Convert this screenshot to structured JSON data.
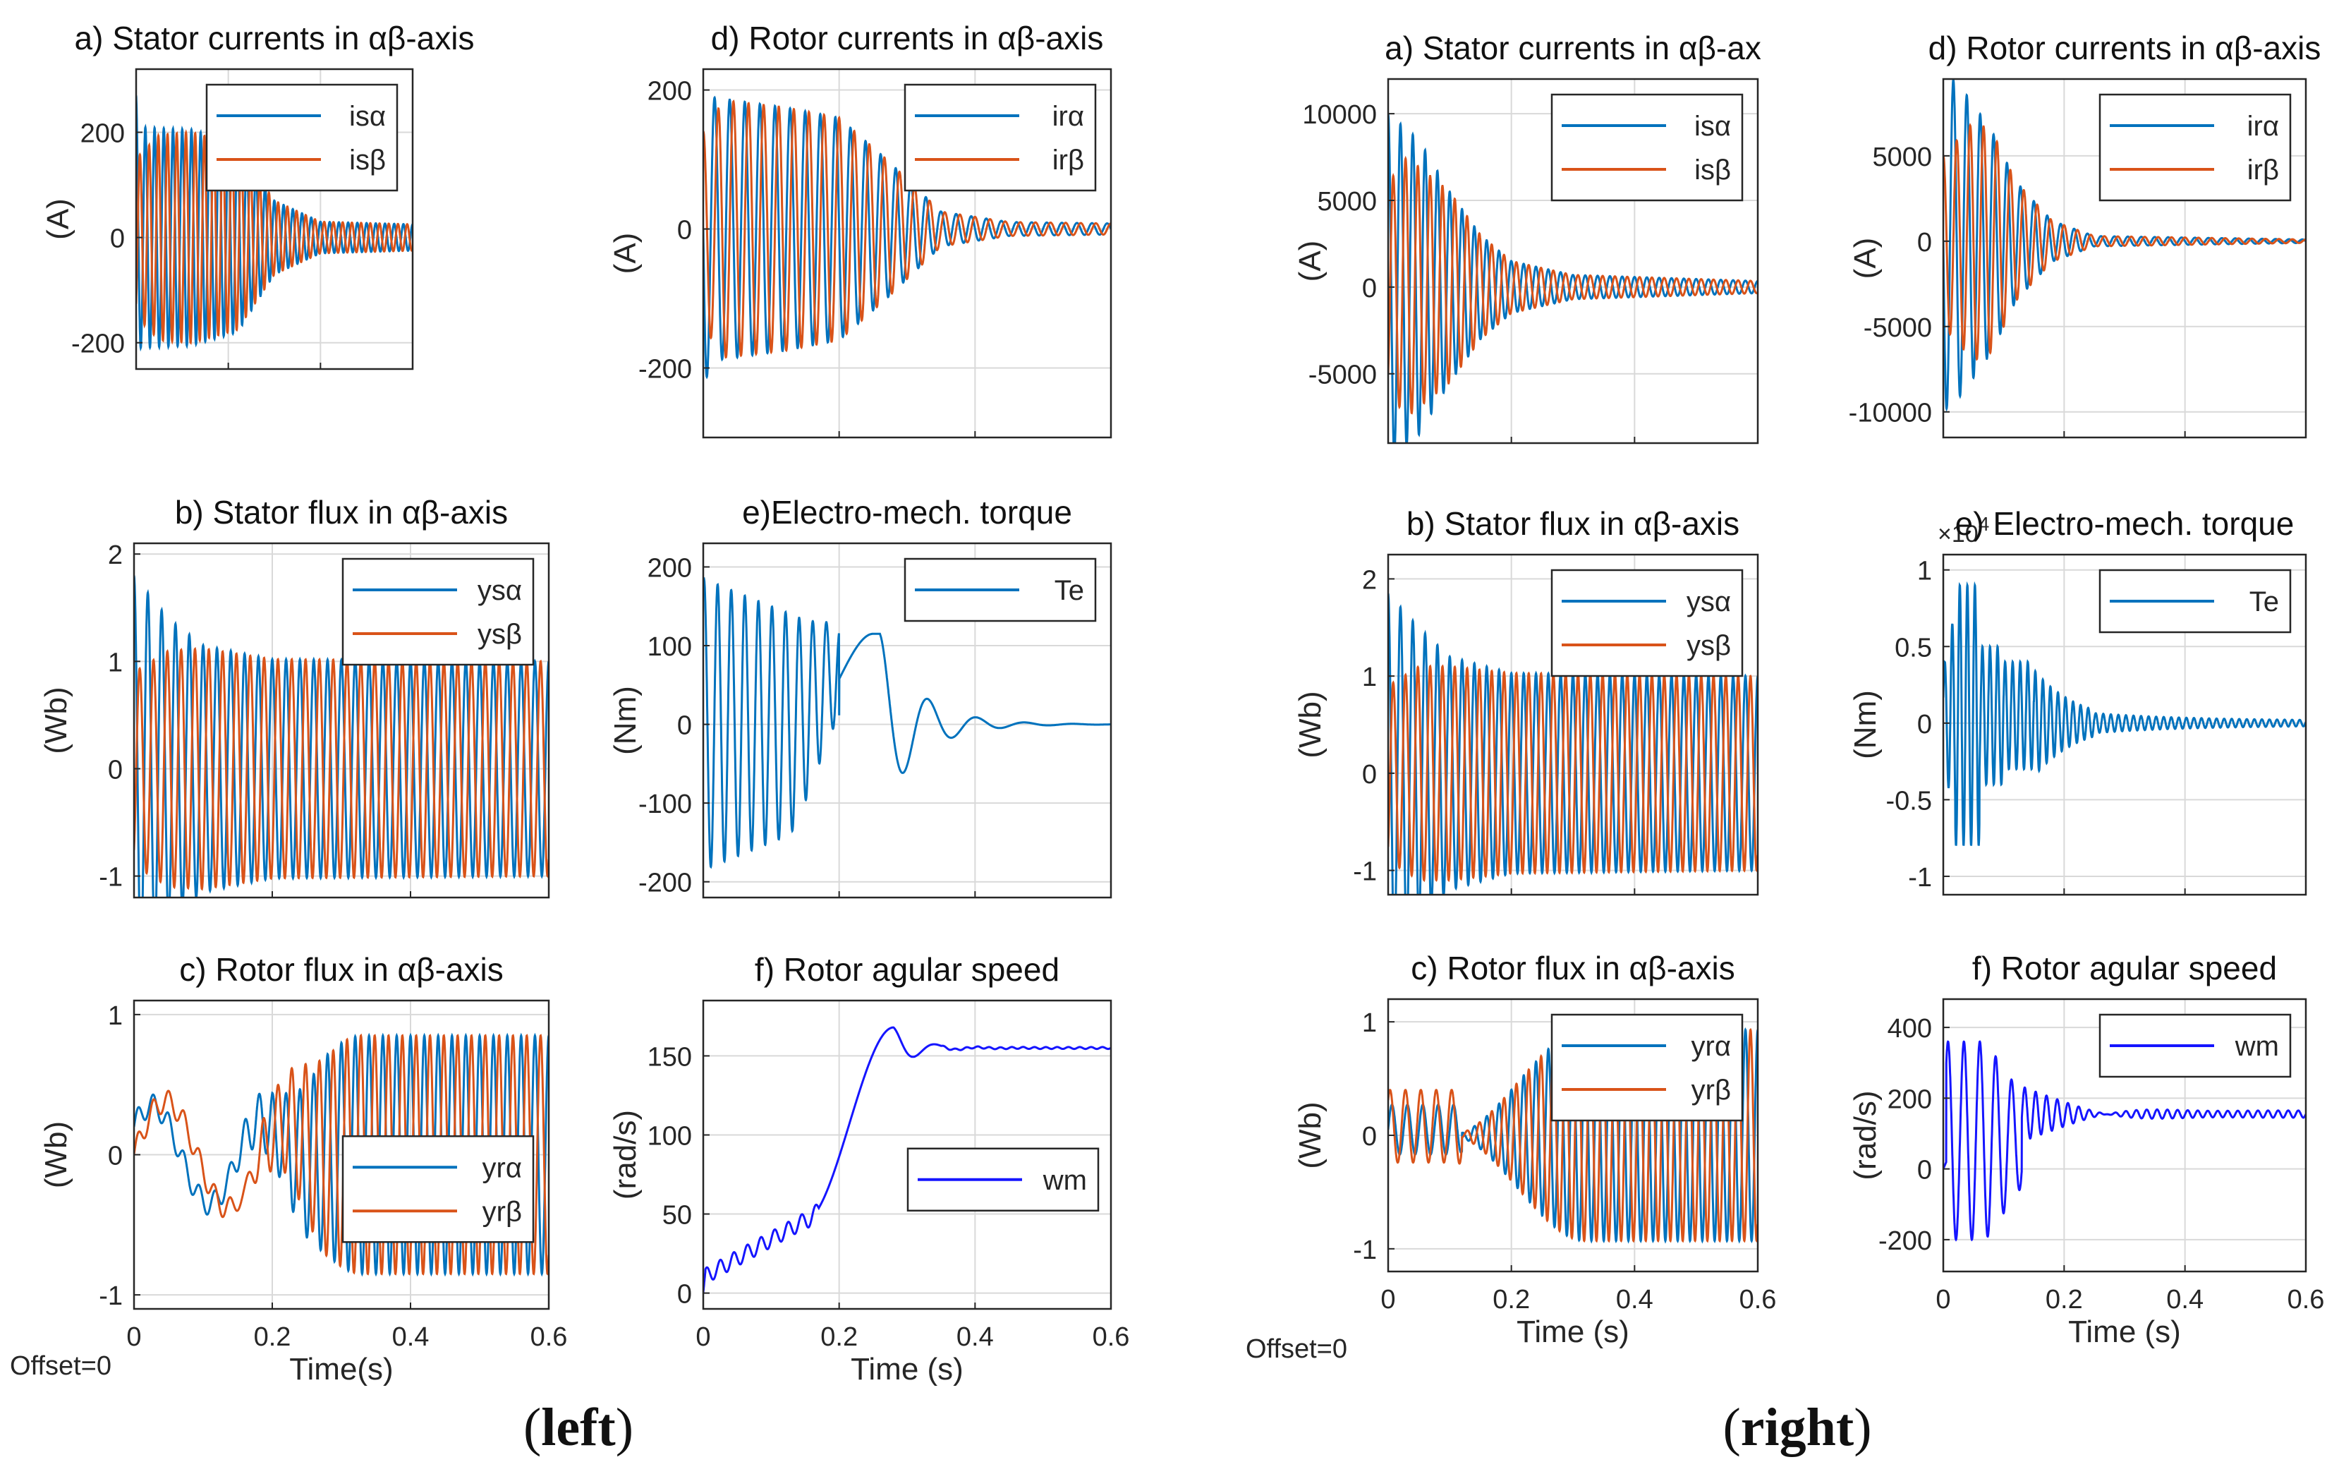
{
  "figure": {
    "captions": [
      {
        "open": "(",
        "word": "left",
        "close": ")"
      },
      {
        "open": "(",
        "word": "right",
        "close": ")"
      }
    ],
    "offset_labels": [
      "Offset=0",
      "Offset=0"
    ],
    "colors": {
      "blue": "#0072BD",
      "orange": "#D95319",
      "speed": "#1515FF",
      "grid": "#d9d9d9",
      "axis": "#262626"
    }
  },
  "chart_data": [
    {
      "id": "L-a",
      "type": "line",
      "title": "a) Stator currents in αβ-axis",
      "ylabel": "(A)",
      "xlabel": "",
      "xlim": [
        0,
        0.6
      ],
      "ylim": [
        -250,
        320
      ],
      "yticks": [
        -200,
        0,
        200
      ],
      "ytick_labels": [
        "-200",
        "0",
        "200"
      ],
      "xticks": [
        0,
        0.2,
        0.4,
        0.6
      ],
      "xtick_labels": [],
      "grid": true,
      "legend": "top-right",
      "series": [
        {
          "name": "isα",
          "color": "#0072BD",
          "waveform": "sin",
          "freq": 50,
          "phase": 1.57,
          "envelope": [
            [
              0,
              270
            ],
            [
              0.005,
              210
            ],
            [
              0.12,
              205
            ],
            [
              0.22,
              180
            ],
            [
              0.3,
              70
            ],
            [
              0.4,
              30
            ],
            [
              0.6,
              25
            ]
          ]
        },
        {
          "name": "isβ",
          "color": "#D95319",
          "waveform": "sin",
          "freq": 50,
          "phase": -1.0,
          "envelope": [
            [
              0,
              150
            ],
            [
              0.05,
              195
            ],
            [
              0.12,
              200
            ],
            [
              0.22,
              175
            ],
            [
              0.3,
              70
            ],
            [
              0.4,
              30
            ],
            [
              0.6,
              25
            ]
          ]
        }
      ]
    },
    {
      "id": "L-d",
      "type": "line",
      "title": "d) Rotor currents in αβ-axis",
      "ylabel": "(A)",
      "xlabel": "",
      "xlim": [
        0,
        0.6
      ],
      "ylim": [
        -300,
        230
      ],
      "yticks": [
        -200,
        0,
        200
      ],
      "ytick_labels": [
        "-200",
        "0",
        "200"
      ],
      "xticks": [
        0,
        0.2,
        0.4,
        0.6
      ],
      "xtick_labels": [],
      "grid": true,
      "legend": "top-right",
      "series": [
        {
          "name": "irα",
          "color": "#0072BD",
          "waveform": "sin",
          "freq": 45,
          "phase": 3.14,
          "envelope": [
            [
              0,
              240
            ],
            [
              0.01,
              190
            ],
            [
              0.12,
              175
            ],
            [
              0.2,
              160
            ],
            [
              0.27,
              100
            ],
            [
              0.35,
              25
            ],
            [
              0.45,
              10
            ],
            [
              0.6,
              8
            ]
          ]
        },
        {
          "name": "irβ",
          "color": "#D95319",
          "waveform": "sin",
          "freq": 45,
          "phase": 1.57,
          "envelope": [
            [
              0,
              140
            ],
            [
              0.03,
              185
            ],
            [
              0.12,
              175
            ],
            [
              0.2,
              160
            ],
            [
              0.27,
              100
            ],
            [
              0.35,
              25
            ],
            [
              0.45,
              10
            ],
            [
              0.6,
              8
            ]
          ]
        }
      ]
    },
    {
      "id": "L-b",
      "type": "line",
      "title": "b) Stator flux in αβ-axis",
      "ylabel": "(Wb)",
      "xlabel": "",
      "xlim": [
        0,
        0.6
      ],
      "ylim": [
        -1.2,
        2.1
      ],
      "yticks": [
        -1,
        0,
        1,
        2
      ],
      "ytick_labels": [
        "-1",
        "0",
        "1",
        "2"
      ],
      "xticks": [
        0,
        0.2,
        0.4,
        0.6
      ],
      "xtick_labels": [],
      "grid": true,
      "legend": "top-right",
      "series": [
        {
          "name": "ysα",
          "color": "#0072BD",
          "waveform": "sin",
          "freq": 50,
          "phase": 1.57,
          "envelope": [
            [
              0,
              1.8
            ],
            [
              0.05,
              1.4
            ],
            [
              0.1,
              1.15
            ],
            [
              0.2,
              1.02
            ],
            [
              0.6,
              1.0
            ]
          ]
        },
        {
          "name": "ysβ",
          "color": "#D95319",
          "waveform": "sin",
          "freq": 50,
          "phase": -1.0,
          "envelope": [
            [
              0,
              0.9
            ],
            [
              0.05,
              1.1
            ],
            [
              0.1,
              1.12
            ],
            [
              0.2,
              1.02
            ],
            [
              0.6,
              1.0
            ]
          ]
        }
      ]
    },
    {
      "id": "L-e",
      "type": "line",
      "title": "e)Electro-mech. torque",
      "ylabel": "(Nm)",
      "xlabel": "",
      "xlim": [
        0,
        0.6
      ],
      "ylim": [
        -220,
        230
      ],
      "yticks": [
        -200,
        -100,
        0,
        100,
        200
      ],
      "ytick_labels": [
        "-200",
        "-100",
        "0",
        "100",
        "200"
      ],
      "xticks": [
        0,
        0.2,
        0.4,
        0.6
      ],
      "xtick_labels": [],
      "grid": true,
      "legend": "top-right",
      "series": [
        {
          "name": "Te",
          "color": "#0072BD",
          "waveform": "torque_left"
        }
      ]
    },
    {
      "id": "L-c",
      "type": "line",
      "title": "c) Rotor flux in αβ-axis",
      "ylabel": "(Wb)",
      "xlabel": "Time(s)",
      "xlim": [
        0,
        0.6
      ],
      "ylim": [
        -1.1,
        1.1
      ],
      "yticks": [
        -1,
        0,
        1
      ],
      "ytick_labels": [
        "-1",
        "0",
        "1"
      ],
      "xticks": [
        0,
        0.2,
        0.4,
        0.6
      ],
      "xtick_labels": [
        "0",
        "0.2",
        "0.4",
        "0.6"
      ],
      "grid": true,
      "legend": "lower-right",
      "series": [
        {
          "name": "yrα",
          "color": "#0072BD",
          "waveform": "rotorflux_left_a"
        },
        {
          "name": "yrβ",
          "color": "#D95319",
          "waveform": "rotorflux_left_b"
        }
      ]
    },
    {
      "id": "L-f",
      "type": "line",
      "title": "f) Rotor agular speed",
      "ylabel": "(rad/s)",
      "xlabel": "Time (s)",
      "xlim": [
        0,
        0.6
      ],
      "ylim": [
        -10,
        185
      ],
      "yticks": [
        0,
        50,
        100,
        150
      ],
      "ytick_labels": [
        "0",
        "50",
        "100",
        "150"
      ],
      "xticks": [
        0,
        0.2,
        0.4,
        0.6
      ],
      "xtick_labels": [
        "0",
        "0.2",
        "0.4",
        "0.6"
      ],
      "grid": true,
      "legend": "middle-right",
      "series": [
        {
          "name": "wm",
          "color": "#1515FF",
          "waveform": "speed_left"
        }
      ]
    },
    {
      "id": "R-a",
      "type": "line",
      "title": "a) Stator currents in αβ-ax",
      "ylabel": "(A)",
      "xlabel": "",
      "xlim": [
        0,
        0.6
      ],
      "ylim": [
        -9000,
        12000
      ],
      "yticks": [
        -5000,
        0,
        5000,
        10000
      ],
      "ytick_labels": [
        "-5000",
        "0",
        "5000",
        "10000"
      ],
      "xticks": [
        0,
        0.2,
        0.4,
        0.6
      ],
      "xtick_labels": [],
      "grid": true,
      "legend": "top-right",
      "series": [
        {
          "name": "isα",
          "color": "#0072BD",
          "waveform": "sin",
          "freq": 50,
          "phase": 1.57,
          "envelope": [
            [
              0,
              10000
            ],
            [
              0.05,
              8500
            ],
            [
              0.1,
              5500
            ],
            [
              0.15,
              3000
            ],
            [
              0.2,
              1500
            ],
            [
              0.3,
              700
            ],
            [
              0.6,
              350
            ]
          ]
        },
        {
          "name": "isβ",
          "color": "#D95319",
          "waveform": "sin",
          "freq": 50,
          "phase": -1.0,
          "envelope": [
            [
              0,
              6000
            ],
            [
              0.03,
              7500
            ],
            [
              0.1,
              5500
            ],
            [
              0.15,
              3000
            ],
            [
              0.2,
              1500
            ],
            [
              0.3,
              700
            ],
            [
              0.6,
              350
            ]
          ]
        }
      ]
    },
    {
      "id": "R-d",
      "type": "line",
      "title": "d) Rotor currents in αβ-axis",
      "ylabel": "(A)",
      "xlabel": "",
      "xlim": [
        0,
        0.6
      ],
      "ylim": [
        -11500,
        9500
      ],
      "yticks": [
        -10000,
        -5000,
        0,
        5000
      ],
      "ytick_labels": [
        "-10000",
        "-5000",
        "0",
        "5000"
      ],
      "xticks": [
        0,
        0.2,
        0.4,
        0.6
      ],
      "xtick_labels": [],
      "grid": true,
      "legend": "top-right",
      "series": [
        {
          "name": "irα",
          "color": "#0072BD",
          "waveform": "sin",
          "freq": 45,
          "phase": 3.14,
          "envelope": [
            [
              0,
              10000
            ],
            [
              0.03,
              9000
            ],
            [
              0.08,
              6500
            ],
            [
              0.12,
              3500
            ],
            [
              0.18,
              1200
            ],
            [
              0.25,
              300
            ],
            [
              0.6,
              100
            ]
          ]
        },
        {
          "name": "irβ",
          "color": "#D95319",
          "waveform": "sin",
          "freq": 45,
          "phase": 1.57,
          "envelope": [
            [
              0,
              5000
            ],
            [
              0.05,
              7000
            ],
            [
              0.08,
              6500
            ],
            [
              0.12,
              3500
            ],
            [
              0.18,
              1200
            ],
            [
              0.25,
              300
            ],
            [
              0.6,
              100
            ]
          ]
        }
      ]
    },
    {
      "id": "R-b",
      "type": "line",
      "title": "b) Stator flux in αβ-axis",
      "ylabel": "(Wb)",
      "xlabel": "",
      "xlim": [
        0,
        0.6
      ],
      "ylim": [
        -1.25,
        2.25
      ],
      "yticks": [
        -1,
        0,
        1,
        2
      ],
      "ytick_labels": [
        "-1",
        "0",
        "1",
        "2"
      ],
      "xticks": [
        0,
        0.2,
        0.4,
        0.6
      ],
      "xtick_labels": [],
      "grid": true,
      "legend": "top-right",
      "series": [
        {
          "name": "ysα",
          "color": "#0072BD",
          "waveform": "sin",
          "freq": 50,
          "phase": 1.57,
          "envelope": [
            [
              0,
              1.85
            ],
            [
              0.05,
              1.5
            ],
            [
              0.1,
              1.2
            ],
            [
              0.2,
              1.03
            ],
            [
              0.6,
              1.0
            ]
          ]
        },
        {
          "name": "ysβ",
          "color": "#D95319",
          "waveform": "sin",
          "freq": 50,
          "phase": -1.0,
          "envelope": [
            [
              0,
              0.9
            ],
            [
              0.05,
              1.1
            ],
            [
              0.1,
              1.1
            ],
            [
              0.2,
              1.03
            ],
            [
              0.6,
              1.0
            ]
          ]
        }
      ]
    },
    {
      "id": "R-e",
      "type": "line",
      "title": "e) Electro-mech. torque",
      "ylabel": "(Nm)",
      "xlabel": "",
      "xlim": [
        0,
        0.6
      ],
      "ylim": [
        -1.12,
        1.1
      ],
      "yticks": [
        -1,
        -0.5,
        0,
        0.5,
        1
      ],
      "ytick_labels": [
        "-1",
        "-0.5",
        "0",
        "0.5",
        "1"
      ],
      "exponent_label": "×10",
      "exponent_power": "4",
      "xticks": [
        0,
        0.2,
        0.4,
        0.6
      ],
      "xtick_labels": [],
      "grid": true,
      "legend": "top-right",
      "series": [
        {
          "name": "Te",
          "color": "#0072BD",
          "waveform": "torque_right"
        }
      ]
    },
    {
      "id": "R-c",
      "type": "line",
      "title": "c) Rotor flux in αβ-axis",
      "ylabel": "(Wb)",
      "xlabel": "Time (s)",
      "xlim": [
        0,
        0.6
      ],
      "ylim": [
        -1.2,
        1.2
      ],
      "yticks": [
        -1,
        0,
        1
      ],
      "ytick_labels": [
        "-1",
        "0",
        "1"
      ],
      "xticks": [
        0,
        0.2,
        0.4,
        0.6
      ],
      "xtick_labels": [
        "0",
        "0.2",
        "0.4",
        "0.6"
      ],
      "grid": true,
      "legend": "top-right",
      "series": [
        {
          "name": "yrα",
          "color": "#0072BD",
          "waveform": "rotorflux_right_a"
        },
        {
          "name": "yrβ",
          "color": "#D95319",
          "waveform": "rotorflux_right_b"
        }
      ]
    },
    {
      "id": "R-f",
      "type": "line",
      "title": "f) Rotor agular speed",
      "ylabel": "(rad/s)",
      "xlabel": "Time (s)",
      "xlim": [
        0,
        0.6
      ],
      "ylim": [
        -290,
        480
      ],
      "yticks": [
        -200,
        0,
        200,
        400
      ],
      "ytick_labels": [
        "-200",
        "0",
        "200",
        "400"
      ],
      "xticks": [
        0,
        0.2,
        0.4,
        0.6
      ],
      "xtick_labels": [
        "0",
        "0.2",
        "0.4",
        "0.6"
      ],
      "grid": true,
      "legend": "top-right",
      "series": [
        {
          "name": "wm",
          "color": "#1515FF",
          "waveform": "speed_right"
        }
      ]
    }
  ]
}
